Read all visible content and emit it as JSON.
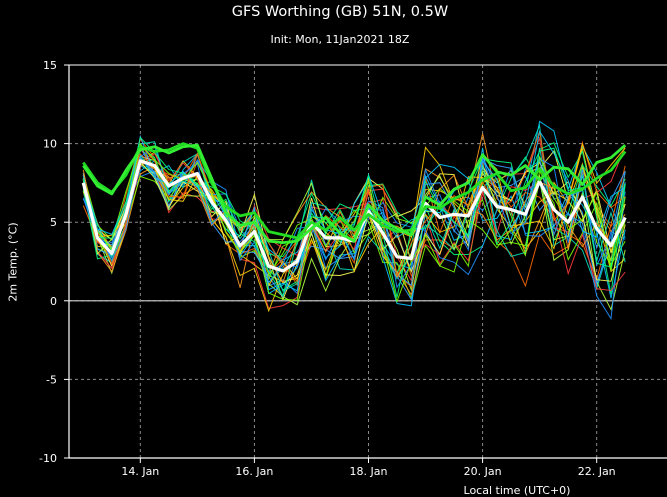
{
  "chart_data": {
    "type": "line",
    "title": "GFS Worthing (GB) 51N, 0.5W",
    "subtitle": "Init: Mon, 11Jan2021 18Z",
    "ylabel": "2m Temp. (°C)",
    "xlabel": "Local time (UTC+0)",
    "ylim": [
      -10,
      15
    ],
    "xlim": [
      12.75,
      23.25
    ],
    "yticks": [
      -10,
      -5,
      0,
      5,
      10,
      15
    ],
    "ytick_labels": [
      "-10",
      "-5",
      "0",
      "5",
      "10",
      "15"
    ],
    "xticks": [
      14,
      16,
      18,
      20,
      22
    ],
    "xtick_labels": [
      "14. Jan",
      "16. Jan",
      "18. Jan",
      "20. Jan",
      "22. Jan"
    ],
    "grid": true,
    "x": [
      13.0,
      13.25,
      13.5,
      13.75,
      14.0,
      14.25,
      14.5,
      14.75,
      15.0,
      15.25,
      15.5,
      15.75,
      16.0,
      16.25,
      16.5,
      16.75,
      17.0,
      17.25,
      17.5,
      17.75,
      18.0,
      18.25,
      18.5,
      18.75,
      19.0,
      19.25,
      19.5,
      19.75,
      20.0,
      20.25,
      20.5,
      20.75,
      21.0,
      21.25,
      21.5,
      21.75,
      22.0,
      22.25,
      22.5
    ],
    "ensemble_colors": [
      "#ff6a00",
      "#ffd000",
      "#00c8ff",
      "#1e90ff",
      "#7cff00",
      "#00ff80",
      "#ff3b3b",
      "#ffff55",
      "#00e0c0",
      "#b0ff40",
      "#3aa0ff",
      "#ff9a20"
    ],
    "series": [
      {
        "name": "",
        "role": "mean",
        "color": "#ffffff",
        "values": [
          7.5,
          4.0,
          3.0,
          5.5,
          8.9,
          8.6,
          7.3,
          7.8,
          8.1,
          6.3,
          5.1,
          3.5,
          4.4,
          2.2,
          1.9,
          2.5,
          5.0,
          4.0,
          4.0,
          3.8,
          5.7,
          4.3,
          2.8,
          2.7,
          6.2,
          5.3,
          5.5,
          5.4,
          7.2,
          6.0,
          5.8,
          5.5,
          7.6,
          5.8,
          5.0,
          6.6,
          4.6,
          3.5,
          5.3
        ]
      },
      {
        "name": "",
        "role": "control",
        "color": "#22dd22",
        "values": [
          8.8,
          7.5,
          6.9,
          8.0,
          9.8,
          9.5,
          9.6,
          10.0,
          9.7,
          7.5,
          6.0,
          5.4,
          5.6,
          4.4,
          4.2,
          4.0,
          5.0,
          4.5,
          5.3,
          4.5,
          5.5,
          4.8,
          4.4,
          4.5,
          6.0,
          5.9,
          6.5,
          6.9,
          7.7,
          8.1,
          7.0,
          7.2,
          8.4,
          7.3,
          6.8,
          7.1,
          7.8,
          8.3,
          9.5
        ]
      },
      {
        "name": "",
        "role": "operational",
        "color": "#33ee33",
        "values": [
          8.6,
          7.3,
          6.8,
          8.3,
          9.6,
          9.8,
          9.4,
          9.8,
          9.9,
          7.8,
          5.6,
          4.8,
          5.0,
          3.8,
          3.7,
          3.8,
          4.6,
          5.3,
          4.3,
          3.8,
          6.1,
          5.1,
          4.6,
          4.2,
          6.6,
          6.1,
          7.1,
          7.5,
          9.3,
          8.2,
          8.0,
          8.6,
          7.7,
          8.5,
          8.4,
          7.4,
          8.8,
          9.1,
          9.9
        ]
      }
    ]
  }
}
